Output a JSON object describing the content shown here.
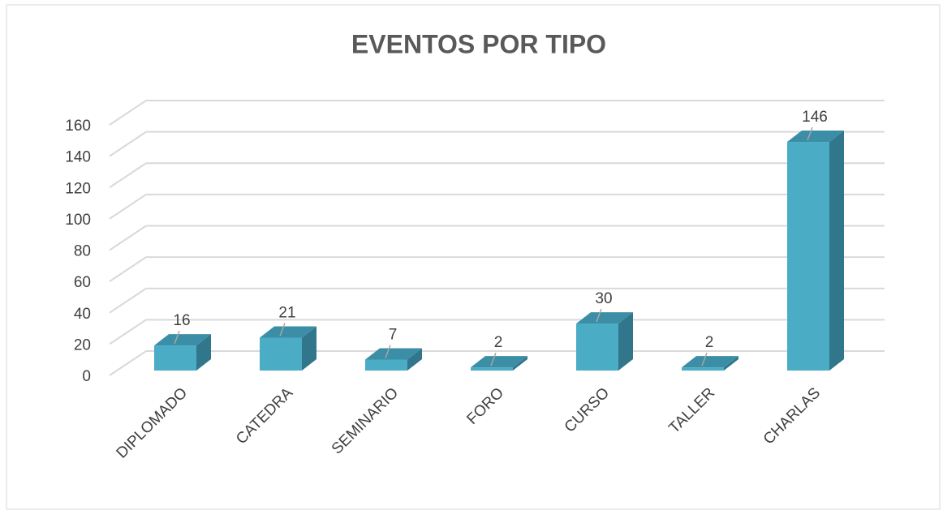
{
  "chart_data": {
    "type": "bar3d",
    "title": "EVENTOS POR TIPO",
    "categories": [
      "DIPLOMADO",
      "CATEDRA",
      "SEMINARIO",
      "FORO",
      "CURSO",
      "TALLER",
      "CHARLAS"
    ],
    "values": [
      16,
      21,
      7,
      2,
      30,
      2,
      146
    ],
    "color": "#4bacc6",
    "ylim": [
      0,
      160
    ],
    "yticks": [
      0,
      20,
      40,
      60,
      80,
      100,
      120,
      140,
      160
    ],
    "grid": true
  }
}
